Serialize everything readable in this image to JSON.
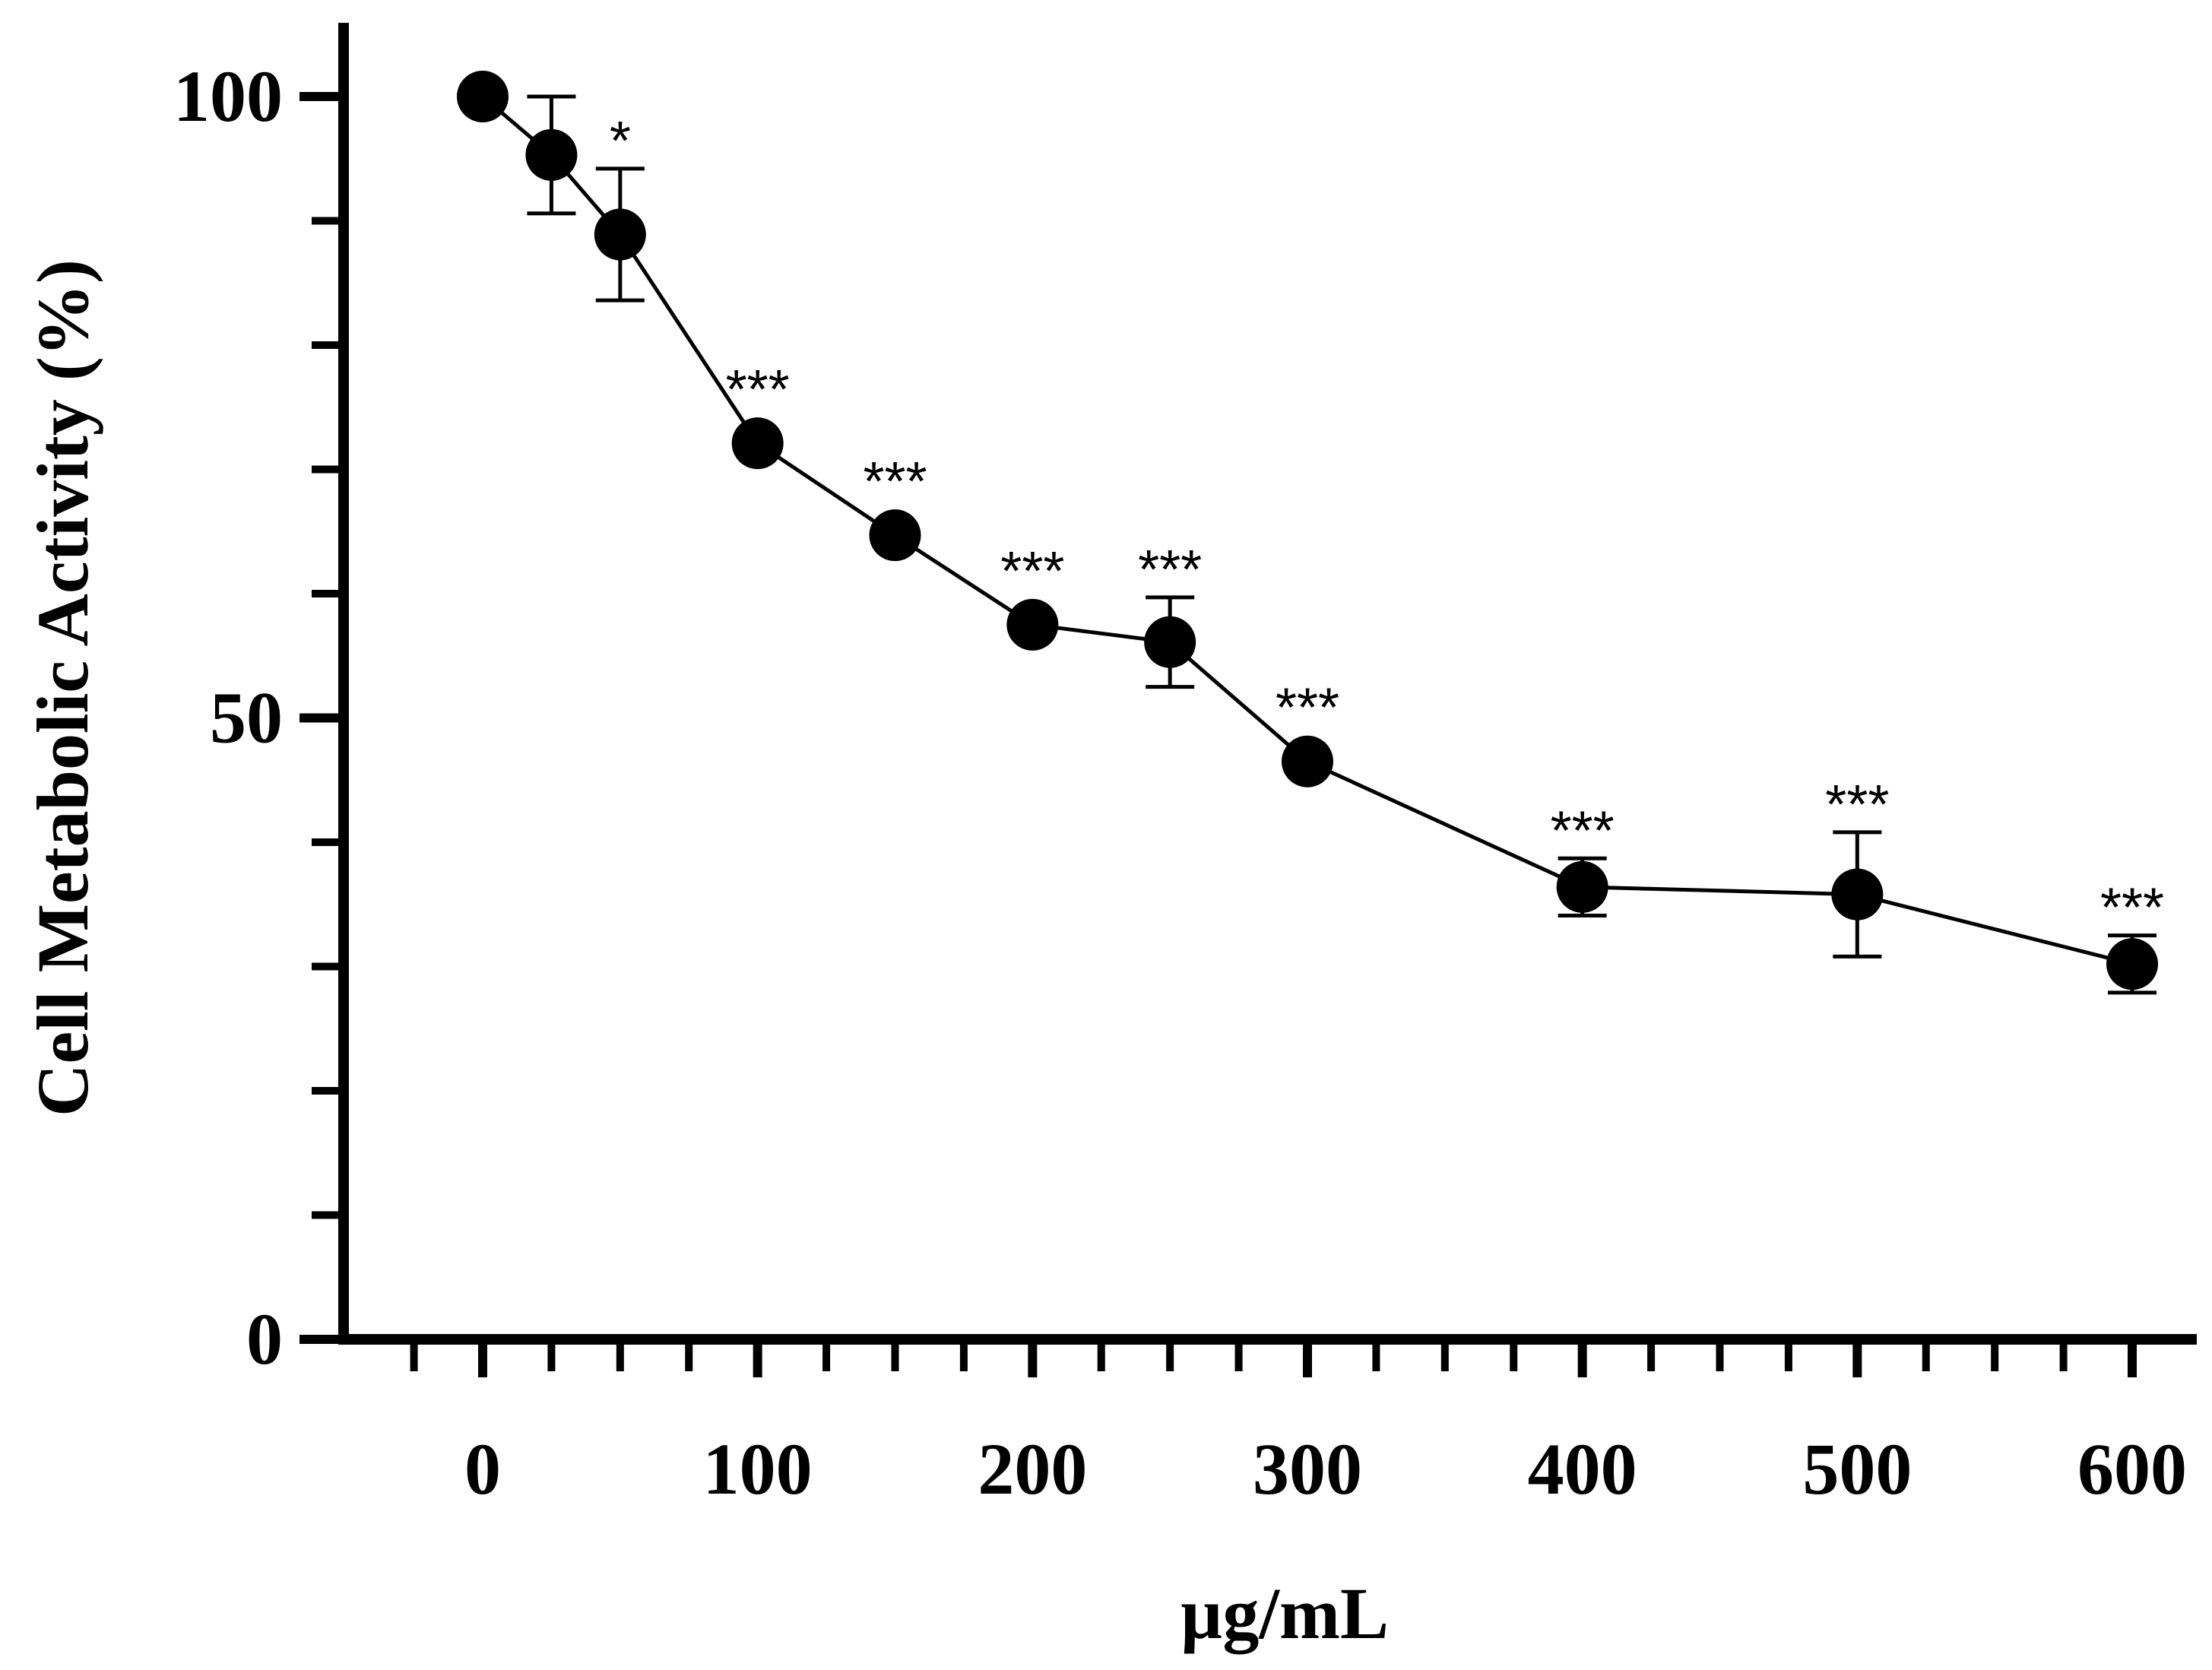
{
  "chart_data": {
    "type": "line",
    "title": "",
    "xlabel": "µg/mL",
    "ylabel": "Cell Metabolic Activity (%)",
    "xlim": [
      -50,
      620
    ],
    "ylim": [
      0,
      105
    ],
    "x_ticks": [
      0,
      100,
      200,
      300,
      400,
      500,
      600
    ],
    "x_tick_labels": [
      "0",
      "100",
      "200",
      "300",
      "400",
      "500",
      "600"
    ],
    "x_minor_step": 25,
    "y_ticks": [
      0,
      50,
      100
    ],
    "y_tick_labels": [
      "0",
      "50",
      "100"
    ],
    "y_minor_step": 10,
    "grid": false,
    "series": [
      {
        "name": "Cell Metabolic Activity",
        "x": [
          0,
          25,
          50,
          100,
          150,
          200,
          250,
          300,
          400,
          500,
          600
        ],
        "y": [
          100,
          95.3,
          88.9,
          72.1,
          64.7,
          57.5,
          56.1,
          46.5,
          36.4,
          35.8,
          30.2
        ],
        "error": [
          0,
          4.7,
          5.3,
          0,
          0,
          0,
          3.6,
          0,
          2.3,
          5.0,
          2.3
        ],
        "significance": [
          "",
          "",
          "*",
          "***",
          "***",
          "***",
          "***",
          "***",
          "***",
          "***",
          "***"
        ],
        "color": "#000000"
      }
    ]
  }
}
